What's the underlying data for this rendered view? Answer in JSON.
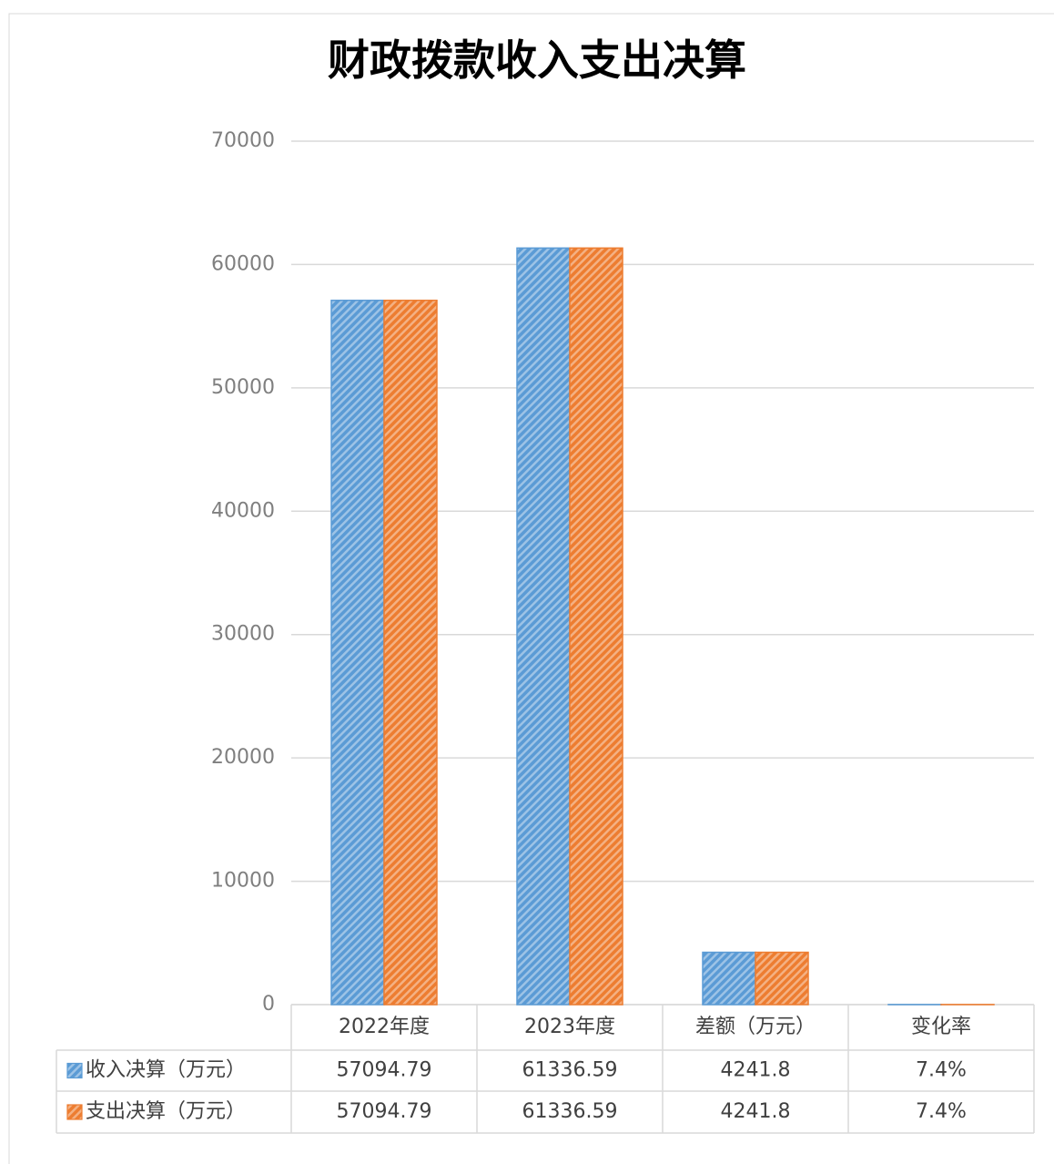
{
  "chart_data": {
    "type": "bar",
    "title": "财政拨款收入支出决算",
    "categories": [
      "2022年度",
      "2023年度",
      "差额（万元）",
      "变化率"
    ],
    "series": [
      {
        "name": "收入决算（万元）",
        "color": "#5b9bd5",
        "values": [
          57094.79,
          61336.59,
          4241.8,
          7.4
        ],
        "value_labels": [
          "57094.79",
          "61336.59",
          "4241.8",
          "7.4%"
        ]
      },
      {
        "name": "支出决算（万元）",
        "color": "#ed7d31",
        "values": [
          57094.79,
          61336.59,
          4241.8,
          7.4
        ],
        "value_labels": [
          "57094.79",
          "61336.59",
          "4241.8",
          "7.4%"
        ]
      }
    ],
    "ylim": [
      0,
      70000
    ],
    "yticks": [
      0,
      10000,
      20000,
      30000,
      40000,
      50000,
      60000,
      70000
    ],
    "grid": true
  }
}
